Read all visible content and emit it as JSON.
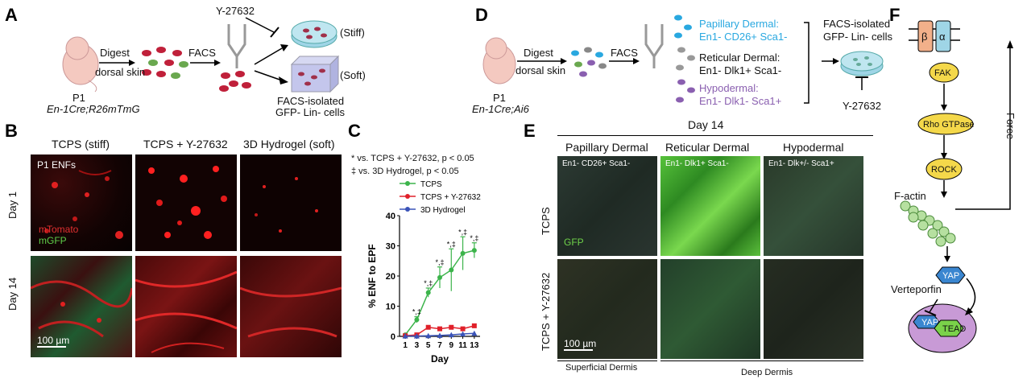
{
  "panelA": {
    "label": "A",
    "y_inhibitor": "Y-27632",
    "digest": "Digest",
    "dorsal_skin": "dorsal skin",
    "facs": "FACS",
    "stiff": "(Stiff)",
    "soft": "(Soft)",
    "mouse_age": "P1",
    "genotype": "En-1Cre;R26mTmG",
    "isolated_line1": "FACS-isolated",
    "isolated_line2": "GFP- Lin- cells"
  },
  "panelB": {
    "label": "B",
    "col_headers": [
      "TCPS (stiff)",
      "TCPS + Y-27632",
      "3D Hydrogel (soft)"
    ],
    "row_labels": [
      "Day 1",
      "Day 14"
    ],
    "overlay_cells": "P1 ENFs",
    "legend_red": "mTomato",
    "legend_green": "mGFP",
    "scale_bar": "100 µm"
  },
  "panelC": {
    "label": "C",
    "note1": "* vs. TCPS + Y-27632, p < 0.05",
    "note2": "‡ vs. 3D Hydrogel, p < 0.05"
  },
  "chart_data": {
    "type": "line",
    "xlabel": "Day",
    "ylabel": "% ENF to EPF",
    "x": [
      1,
      3,
      5,
      7,
      9,
      11,
      13
    ],
    "ylim": [
      0,
      40
    ],
    "yticks": [
      0,
      10,
      20,
      30,
      40
    ],
    "legend_position": "top",
    "series": [
      {
        "name": "TCPS",
        "color": "#3cb44b",
        "marker": "circle",
        "values": [
          0.5,
          5.5,
          14.5,
          19.5,
          22,
          27.5,
          28.5
        ],
        "errors": [
          0.3,
          1.0,
          1.5,
          3.5,
          7,
          5.5,
          2.5
        ],
        "annotations": [
          "",
          "*,‡",
          "*,‡",
          "*,‡",
          "*,‡",
          "*,‡",
          "*,‡"
        ]
      },
      {
        "name": "TCPS + Y-27632",
        "color": "#e0202a",
        "marker": "square",
        "values": [
          0.2,
          0.5,
          3.0,
          2.5,
          3.0,
          2.5,
          3.5
        ]
      },
      {
        "name": "3D Hydrogel",
        "color": "#3a53b8",
        "marker": "triangle",
        "values": [
          0.1,
          0.1,
          0.2,
          0.3,
          0.5,
          0.8,
          1.0
        ]
      }
    ]
  },
  "panelD": {
    "label": "D",
    "digest": "Digest",
    "dorsal_skin": "dorsal skin",
    "facs": "FACS",
    "mouse_age": "P1",
    "genotype": "En-1Cre;Ai6",
    "papillary_title": "Papillary Dermal:",
    "papillary_markers": "En1- CD26+ Sca1-",
    "reticular_title": "Reticular Dermal:",
    "reticular_markers": "En1- Dlk1+ Sca1-",
    "hypodermal_title": "Hypodermal:",
    "hypodermal_markers": "En1- Dlk1- Sca1+",
    "isolated_line1": "FACS-isolated",
    "isolated_line2": "GFP- Lin- cells",
    "y_inhibitor": "Y-27632",
    "colors": {
      "papillary": "#29a8e0",
      "hypodermal": "#8a5fb0",
      "reticular": "#111111"
    }
  },
  "panelE": {
    "label": "E",
    "day": "Day 14",
    "col_headers": [
      "Papillary Dermal",
      "Reticular Dermal",
      "Hypodermal"
    ],
    "col_markers": [
      "En1- CD26+ Sca1-",
      "En1- Dlk1+ Sca1-",
      "En1- Dlk+/- Sca1+"
    ],
    "row_labels": [
      "TCPS",
      "TCPS + Y-27632"
    ],
    "gfp": "GFP",
    "scale_bar": "100 µm",
    "superficial": "Superficial Dermis",
    "deep": "Deep Dermis"
  },
  "panelF": {
    "label": "F",
    "beta": "β",
    "alpha": "α",
    "fak": "FAK",
    "rho": "Rho GTPase",
    "rock": "ROCK",
    "factin": "F-actin",
    "yap": "YAP",
    "verteporfin": "Verteporfin",
    "yap_inner": "YAP",
    "tead": "TEAD",
    "force": "Force"
  }
}
